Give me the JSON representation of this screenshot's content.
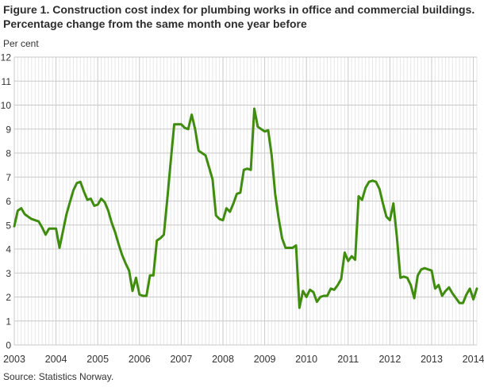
{
  "header": {
    "title": "Figure 1. Construction cost index for plumbing works in office and commercial buildings. Percentage change from the same month one year before",
    "unit_label": "Per cent"
  },
  "footer": {
    "source": "Source: Statistics Norway."
  },
  "chart_data": {
    "type": "line",
    "title": "Figure 1. Construction cost index for plumbing works in office and commercial buildings. Percentage change from the same month one year before",
    "xlabel": "",
    "ylabel": "Per cent",
    "ylim": [
      0,
      12
    ],
    "y_ticks": [
      0,
      1,
      2,
      3,
      4,
      5,
      6,
      7,
      8,
      9,
      10,
      11,
      12
    ],
    "x_tick_labels": [
      "2003",
      "2004",
      "2005",
      "2006",
      "2007",
      "2008",
      "2009",
      "2010",
      "2011",
      "2012",
      "2013",
      "2014"
    ],
    "x_start_month": "2003-01",
    "x_end_month": "2014-02",
    "grid": true,
    "legend_position": "none",
    "series": [
      {
        "name": "Percentage change from the same month one year before",
        "values": [
          4.95,
          5.6,
          5.7,
          5.45,
          5.35,
          5.25,
          5.2,
          5.15,
          4.9,
          4.6,
          4.85,
          4.85,
          4.85,
          4.05,
          4.75,
          5.45,
          5.95,
          6.45,
          6.75,
          6.8,
          6.4,
          6.05,
          6.1,
          5.8,
          5.85,
          6.1,
          5.95,
          5.6,
          5.1,
          4.7,
          4.2,
          3.75,
          3.4,
          3.1,
          2.25,
          2.8,
          2.1,
          2.05,
          2.05,
          2.9,
          2.9,
          4.35,
          4.45,
          4.6,
          6.1,
          7.7,
          9.2,
          9.2,
          9.2,
          9.05,
          9.0,
          9.6,
          9.0,
          8.1,
          8.0,
          7.9,
          7.4,
          6.9,
          5.4,
          5.25,
          5.2,
          5.7,
          5.55,
          5.9,
          6.3,
          6.35,
          7.3,
          7.35,
          7.3,
          9.85,
          9.1,
          9.0,
          8.9,
          8.95,
          7.9,
          6.3,
          5.3,
          4.45,
          4.05,
          4.05,
          4.05,
          4.15,
          1.55,
          2.25,
          2.0,
          2.3,
          2.2,
          1.8,
          2.0,
          2.05,
          2.05,
          2.35,
          2.3,
          2.5,
          2.75,
          3.85,
          3.5,
          3.7,
          3.55,
          6.2,
          6.05,
          6.55,
          6.8,
          6.85,
          6.8,
          6.5,
          5.9,
          5.35,
          5.2,
          5.9,
          4.5,
          2.8,
          2.85,
          2.8,
          2.5,
          1.95,
          2.9,
          3.15,
          3.2,
          3.15,
          3.1,
          2.35,
          2.5,
          2.05,
          2.25,
          2.4,
          2.15,
          1.95,
          1.75,
          1.75,
          2.1,
          2.35,
          1.9,
          2.35
        ]
      }
    ],
    "colors": {
      "line": "#3f8c0f",
      "grid_major": "#c9c9c9",
      "grid_minor": "#e7e7e7",
      "text": "#333333"
    }
  }
}
